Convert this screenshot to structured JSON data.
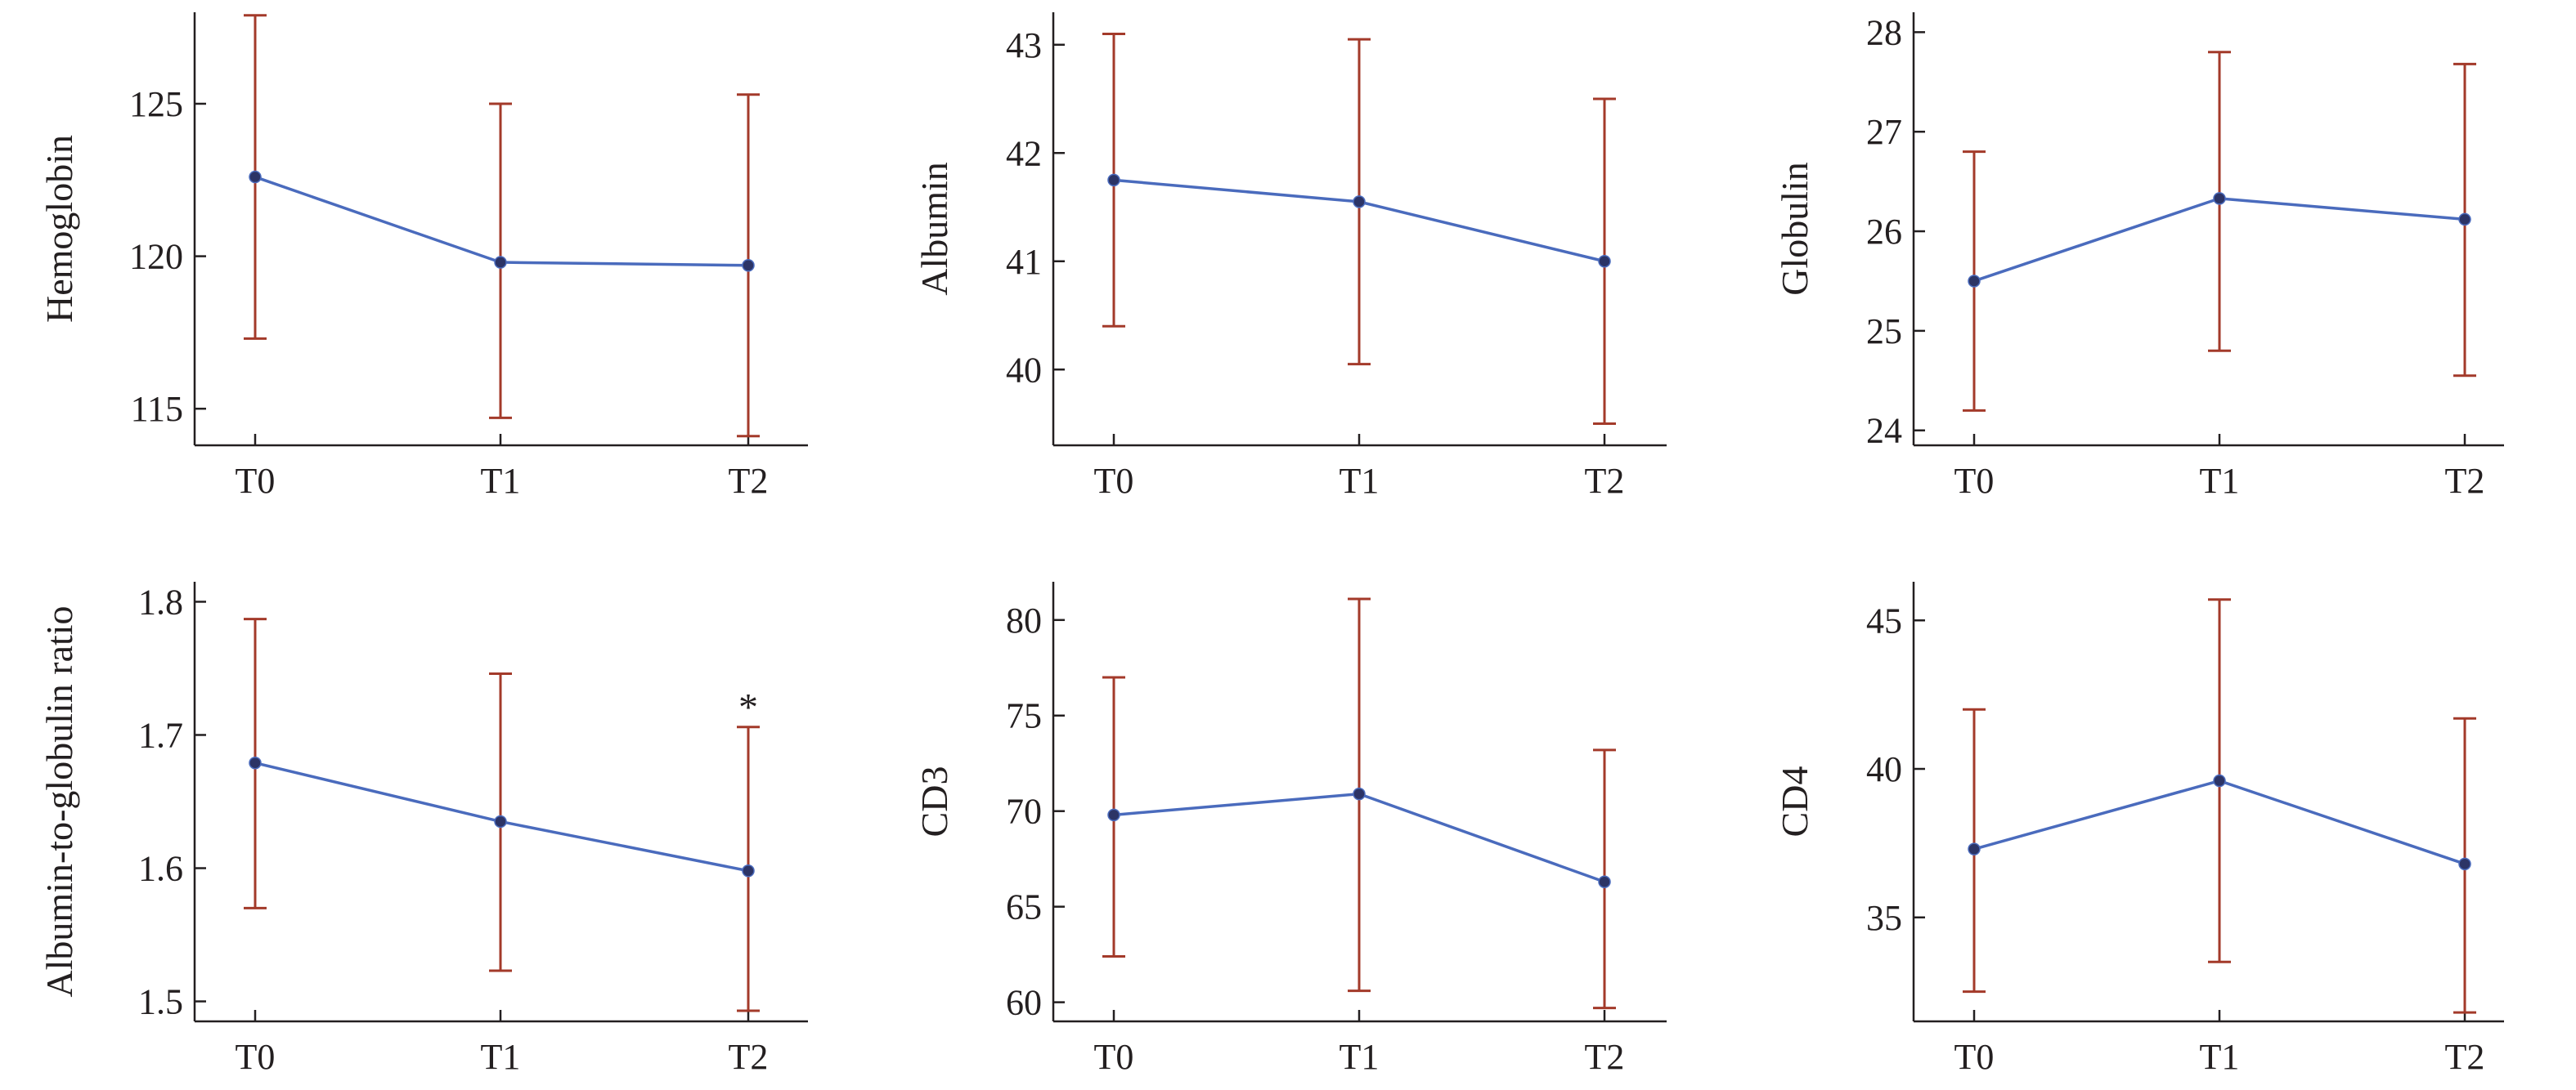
{
  "colors": {
    "line": "#4a6bbd",
    "marker": "#2c3466",
    "errorbar": "#a33a2a",
    "axis": "#231f20"
  },
  "chart_data": [
    {
      "type": "line",
      "ylabel": "Hemoglobin",
      "categories": [
        "T0",
        "T1",
        "T2"
      ],
      "values": [
        122.6,
        119.8,
        119.7
      ],
      "error_upper": [
        127.9,
        125.0,
        125.3
      ],
      "error_lower": [
        117.3,
        114.7,
        114.1
      ],
      "ylim": [
        113.8,
        128.0
      ],
      "yticks": [
        115,
        120,
        125
      ],
      "ytick_labels": [
        "115",
        "120",
        "125"
      ],
      "annotations": []
    },
    {
      "type": "line",
      "ylabel": "Albumin",
      "categories": [
        "T0",
        "T1",
        "T2"
      ],
      "values": [
        41.75,
        41.55,
        41.0
      ],
      "error_upper": [
        43.1,
        43.05,
        42.5
      ],
      "error_lower": [
        40.4,
        40.05,
        39.5
      ],
      "ylim": [
        39.3,
        43.3
      ],
      "yticks": [
        40,
        41,
        42,
        43
      ],
      "ytick_labels": [
        "40",
        "41",
        "42",
        "43"
      ],
      "annotations": []
    },
    {
      "type": "line",
      "ylabel": "Globulin",
      "categories": [
        "T0",
        "T1",
        "T2"
      ],
      "values": [
        25.5,
        26.33,
        26.12
      ],
      "error_upper": [
        26.8,
        27.8,
        27.68
      ],
      "error_lower": [
        24.2,
        24.8,
        24.55
      ],
      "ylim": [
        23.85,
        28.2
      ],
      "yticks": [
        24,
        25,
        26,
        27,
        28
      ],
      "ytick_labels": [
        "24",
        "25",
        "26",
        "27",
        "28"
      ],
      "annotations": []
    },
    {
      "type": "line",
      "ylabel": "Albumin-to-globulin ratio",
      "categories": [
        "T0",
        "T1",
        "T2"
      ],
      "values": [
        1.679,
        1.635,
        1.598
      ],
      "error_upper": [
        1.787,
        1.746,
        1.706
      ],
      "error_lower": [
        1.57,
        1.523,
        1.493
      ],
      "ylim": [
        1.485,
        1.815
      ],
      "yticks": [
        1.5,
        1.6,
        1.7,
        1.8
      ],
      "ytick_labels": [
        "1.5",
        "1.6",
        "1.7",
        "1.8"
      ],
      "annotations": [
        {
          "index": 2,
          "text": "*"
        }
      ]
    },
    {
      "type": "line",
      "ylabel": "CD3",
      "categories": [
        "T0",
        "T1",
        "T2"
      ],
      "values": [
        69.8,
        70.9,
        66.3
      ],
      "error_upper": [
        77.0,
        81.1,
        73.2
      ],
      "error_lower": [
        62.4,
        60.6,
        59.7
      ],
      "ylim": [
        59.0,
        82.0
      ],
      "yticks": [
        60,
        65,
        70,
        75,
        80
      ],
      "ytick_labels": [
        "60",
        "65",
        "70",
        "75",
        "80"
      ],
      "annotations": []
    },
    {
      "type": "line",
      "ylabel": "CD4",
      "categories": [
        "T0",
        "T1",
        "T2"
      ],
      "values": [
        37.3,
        39.6,
        36.8
      ],
      "error_upper": [
        42.0,
        45.7,
        41.7
      ],
      "error_lower": [
        32.5,
        33.5,
        31.8
      ],
      "ylim": [
        31.5,
        46.3
      ],
      "yticks": [
        35,
        40,
        45
      ],
      "ytick_labels": [
        "35",
        "40",
        "45"
      ],
      "annotations": []
    }
  ]
}
